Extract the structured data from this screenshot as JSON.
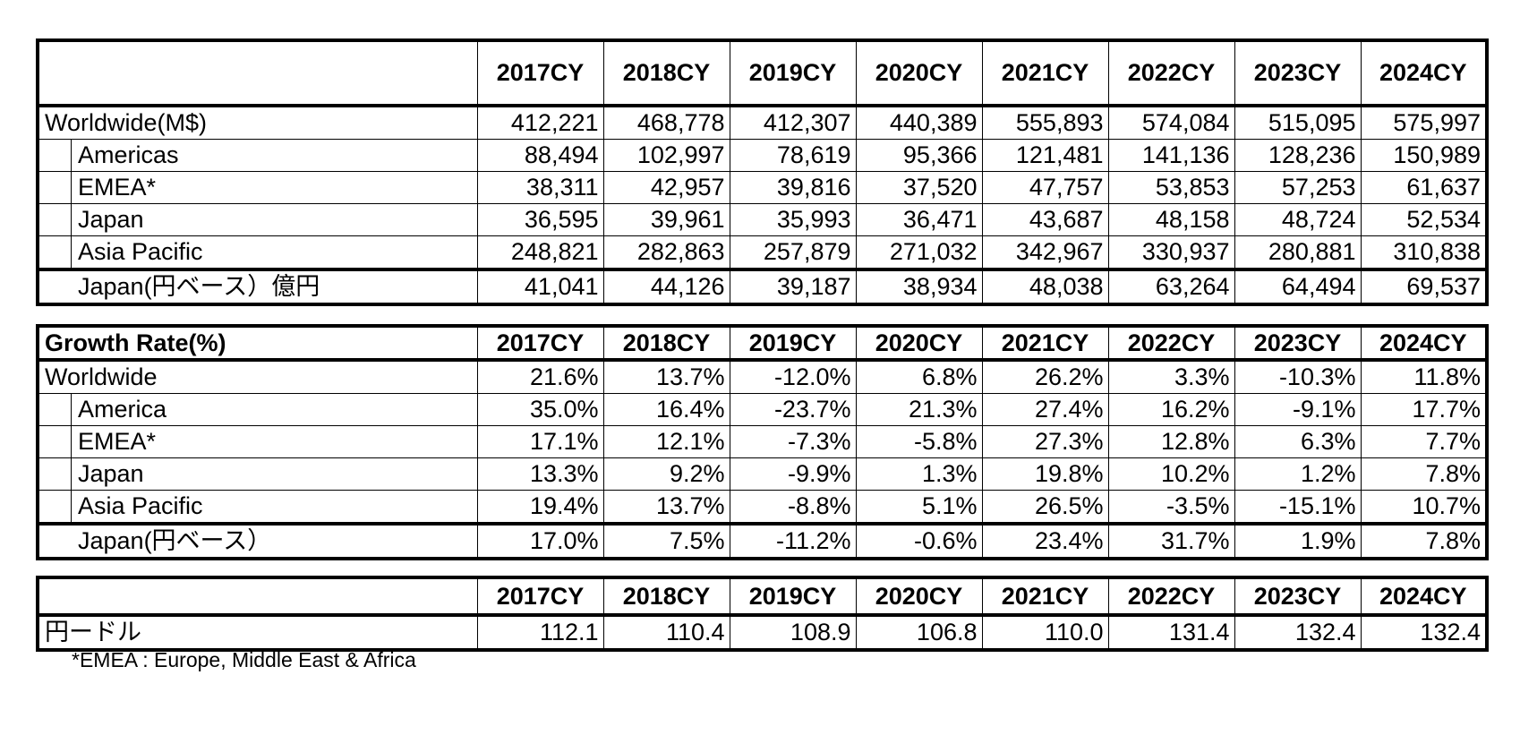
{
  "years": [
    "2017CY",
    "2018CY",
    "2019CY",
    "2020CY",
    "2021CY",
    "2022CY",
    "2023CY",
    "2024CY"
  ],
  "market_table": {
    "rows": [
      {
        "label": "Worldwide(M$)",
        "indent": false,
        "total": false,
        "values": [
          "412,221",
          "468,778",
          "412,307",
          "440,389",
          "555,893",
          "574,084",
          "515,095",
          "575,997"
        ]
      },
      {
        "label": "Americas",
        "indent": true,
        "total": false,
        "values": [
          "88,494",
          "102,997",
          "78,619",
          "95,366",
          "121,481",
          "141,136",
          "128,236",
          "150,989"
        ]
      },
      {
        "label": "EMEA*",
        "indent": true,
        "total": false,
        "values": [
          "38,311",
          "42,957",
          "39,816",
          "37,520",
          "47,757",
          "53,853",
          "57,253",
          "61,637"
        ]
      },
      {
        "label": "Japan",
        "indent": true,
        "total": false,
        "values": [
          "36,595",
          "39,961",
          "35,993",
          "36,471",
          "43,687",
          "48,158",
          "48,724",
          "52,534"
        ]
      },
      {
        "label": "Asia Pacific",
        "indent": true,
        "total": false,
        "values": [
          "248,821",
          "282,863",
          "257,879",
          "271,032",
          "342,967",
          "330,937",
          "280,881",
          "310,838"
        ]
      },
      {
        "label": "Japan(円ベース）億円",
        "indent": false,
        "total": true,
        "values": [
          "41,041",
          "44,126",
          "39,187",
          "38,934",
          "48,038",
          "63,264",
          "64,494",
          "69,537"
        ]
      }
    ]
  },
  "growth_table": {
    "title": "Growth Rate(%)",
    "rows": [
      {
        "label": "Worldwide",
        "indent": false,
        "total": false,
        "values": [
          "21.6%",
          "13.7%",
          "-12.0%",
          "6.8%",
          "26.2%",
          "3.3%",
          "-10.3%",
          "11.8%"
        ]
      },
      {
        "label": "America",
        "indent": true,
        "total": false,
        "values": [
          "35.0%",
          "16.4%",
          "-23.7%",
          "21.3%",
          "27.4%",
          "16.2%",
          "-9.1%",
          "17.7%"
        ]
      },
      {
        "label": "EMEA*",
        "indent": true,
        "total": false,
        "values": [
          "17.1%",
          "12.1%",
          "-7.3%",
          "-5.8%",
          "27.3%",
          "12.8%",
          "6.3%",
          "7.7%"
        ]
      },
      {
        "label": "Japan",
        "indent": true,
        "total": false,
        "values": [
          "13.3%",
          "9.2%",
          "-9.9%",
          "1.3%",
          "19.8%",
          "10.2%",
          "1.2%",
          "7.8%"
        ]
      },
      {
        "label": "Asia Pacific",
        "indent": true,
        "total": false,
        "values": [
          "19.4%",
          "13.7%",
          "-8.8%",
          "5.1%",
          "26.5%",
          "-3.5%",
          "-15.1%",
          "10.7%"
        ]
      },
      {
        "label": "Japan(円ベース）",
        "indent": false,
        "total": true,
        "values": [
          "17.0%",
          "7.5%",
          "-11.2%",
          "-0.6%",
          "23.4%",
          "31.7%",
          "1.9%",
          "7.8%"
        ]
      }
    ]
  },
  "fx_table": {
    "rows": [
      {
        "label": "円ードル",
        "indent": false,
        "total": false,
        "values": [
          "112.1",
          "110.4",
          "108.9",
          "106.8",
          "110.0",
          "131.4",
          "132.4",
          "132.4"
        ]
      }
    ]
  },
  "footnote": "*EMEA : Europe, Middle East & Africa"
}
